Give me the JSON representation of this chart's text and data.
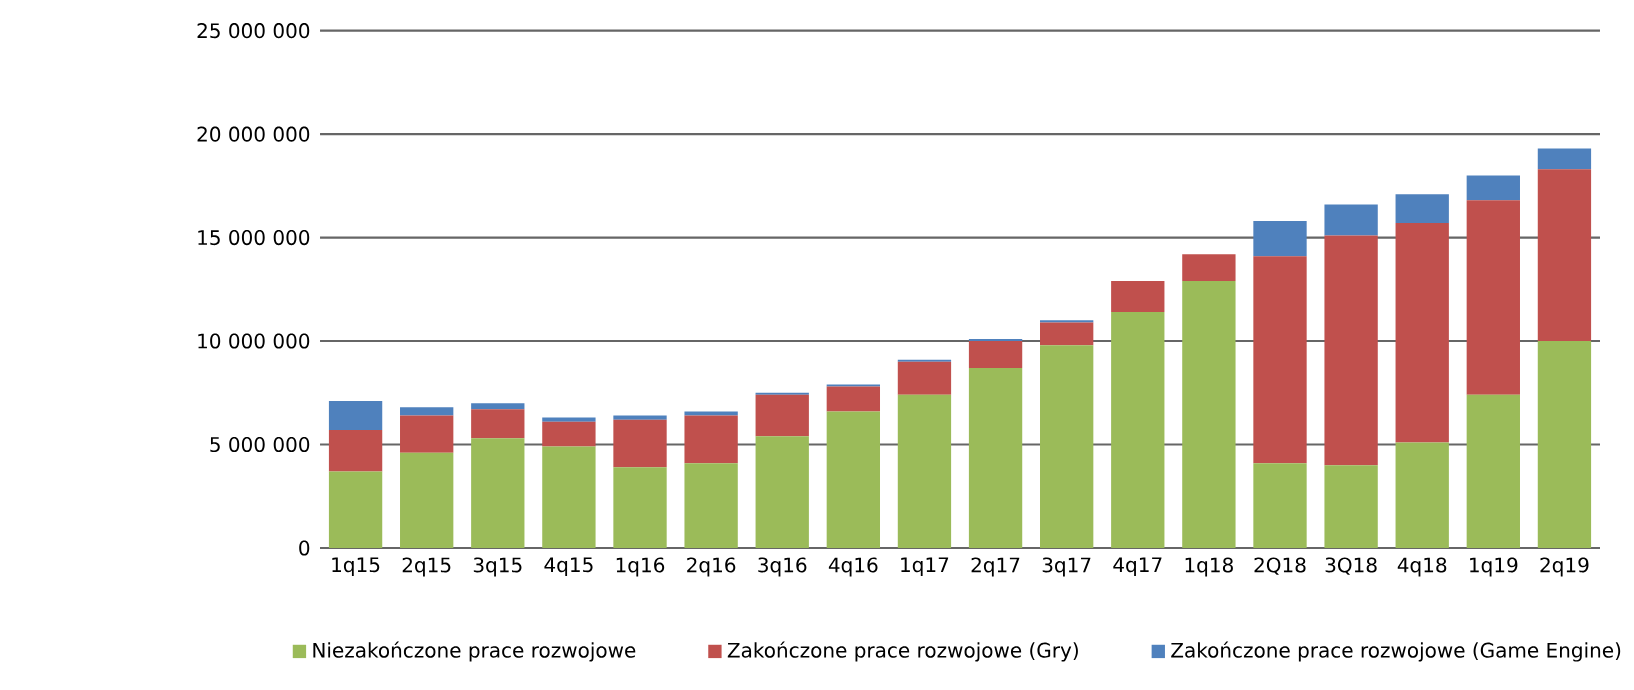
{
  "chart_data": {
    "type": "bar",
    "stacked": true,
    "categories": [
      "1q15",
      "2q15",
      "3q15",
      "4q15",
      "1q16",
      "2q16",
      "3q16",
      "4q16",
      "1q17",
      "2q17",
      "3q17",
      "4q17",
      "1q18",
      "2Q18",
      "3Q18",
      "4q18",
      "1q19",
      "2q19"
    ],
    "series": [
      {
        "name": "Niezakończone prace rozwojowe",
        "color": "#9bbb59",
        "values": [
          3700000,
          4600000,
          5300000,
          4900000,
          3900000,
          4100000,
          5400000,
          6600000,
          7400000,
          8700000,
          9800000,
          11400000,
          12900000,
          4100000,
          4000000,
          5100000,
          7400000,
          10000000
        ]
      },
      {
        "name": "Zakończone prace rozwojowe (Gry)",
        "color": "#c0504d",
        "values": [
          2000000,
          1800000,
          1400000,
          1200000,
          2300000,
          2300000,
          2000000,
          1200000,
          1600000,
          1300000,
          1100000,
          1500000,
          1300000,
          10000000,
          11100000,
          10600000,
          9400000,
          8300000
        ]
      },
      {
        "name": "Zakończone prace rozwojowe (Game Engine)",
        "color": "#4f81bd",
        "values": [
          1400000,
          400000,
          300000,
          200000,
          200000,
          200000,
          100000,
          100000,
          100000,
          100000,
          100000,
          0,
          0,
          1700000,
          1500000,
          1400000,
          1200000,
          1000000
        ]
      }
    ],
    "ylim": [
      0,
      25000000
    ],
    "yticks": [
      {
        "value": 0,
        "label": "0"
      },
      {
        "value": 5000000,
        "label": "5 000 000"
      },
      {
        "value": 10000000,
        "label": "10 000 000"
      },
      {
        "value": 15000000,
        "label": "15 000 000"
      },
      {
        "value": 20000000,
        "label": "20 000 000"
      },
      {
        "value": 25000000,
        "label": "25 000 000"
      }
    ],
    "grid": "y",
    "legend": "bottom"
  }
}
